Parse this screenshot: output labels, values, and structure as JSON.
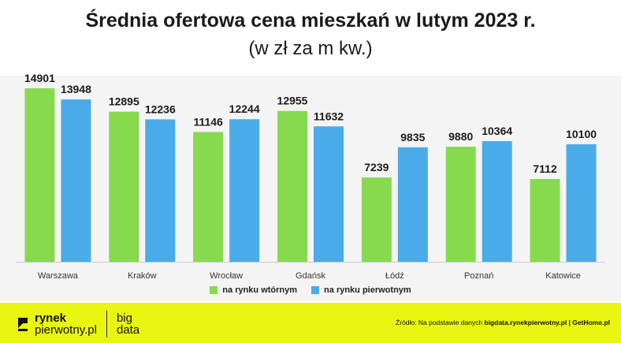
{
  "chart_data": {
    "type": "bar",
    "title": "Średnia ofertowa cena mieszkań w lutym 2023 r.",
    "subtitle": "(w zł za m kw.)",
    "categories": [
      "Warszawa",
      "Kraków",
      "Wrocław",
      "Gdańsk",
      "Łódź",
      "Poznań",
      "Katowice"
    ],
    "series": [
      {
        "name": "na rynku wtórnym",
        "color": "#87d94e",
        "values": [
          14901,
          12895,
          11146,
          12955,
          7239,
          9880,
          7112
        ]
      },
      {
        "name": "na rynku pierwotnym",
        "color": "#4aabe9",
        "values": [
          13948,
          12236,
          12244,
          11632,
          9835,
          10364,
          10100
        ]
      }
    ],
    "ylim": [
      0,
      15000
    ],
    "grid": false,
    "legend": "bottom"
  },
  "footer": {
    "logo_line1": "rynek",
    "logo_line2": "pierwotny.pl",
    "logo_big1": "big",
    "logo_big2": "data",
    "source_prefix": "Źródło: Na podstawie danych ",
    "source_bold": "bigdata.rynekpierwotny.pl | GetHome.pl",
    "background": "#e9f50f"
  }
}
